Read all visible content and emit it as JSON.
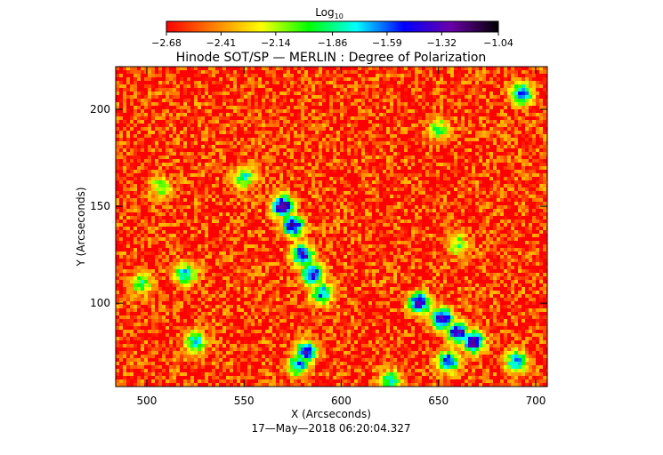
{
  "chart_data": {
    "type": "heatmap",
    "title": "Hinode SOT/SP — MERLIN : Degree of Polarization",
    "subtitle": "17—May—2018 06:20:04.327",
    "xlabel": "X (Arcseconds)",
    "ylabel": "Y (Arcseconds)",
    "xlim": [
      484,
      706
    ],
    "ylim": [
      57,
      222
    ],
    "x_ticks": [
      "500",
      "550",
      "600",
      "650",
      "700"
    ],
    "x_tick_values": [
      500,
      550,
      600,
      650,
      700
    ],
    "y_ticks": [
      "100",
      "150",
      "200"
    ],
    "y_tick_values": [
      100,
      150,
      200
    ],
    "grid": false,
    "colorbar": {
      "label_base": "Log",
      "label_sub": "10",
      "ticks": [
        "−2.68",
        "−2.41",
        "−2.14",
        "−1.86",
        "−1.59",
        "−1.32",
        "−1.04"
      ],
      "tick_values": [
        -2.68,
        -2.41,
        -2.14,
        -1.86,
        -1.59,
        -1.32,
        -1.04
      ],
      "range": [
        -2.68,
        -1.04
      ],
      "placement": "top",
      "colors": [
        "#ff0000",
        "#ff7f00",
        "#ffff00",
        "#00ff00",
        "#00ffff",
        "#0000ff",
        "#6a00a8",
        "#000000"
      ]
    },
    "background_level": -2.6,
    "features": [
      {
        "x": 575,
        "y": 140,
        "level": -1.25
      },
      {
        "x": 570,
        "y": 150,
        "level": -1.15
      },
      {
        "x": 580,
        "y": 125,
        "level": -1.3
      },
      {
        "x": 585,
        "y": 115,
        "level": -1.4
      },
      {
        "x": 590,
        "y": 105,
        "level": -1.6
      },
      {
        "x": 582,
        "y": 75,
        "level": -1.4
      },
      {
        "x": 578,
        "y": 68,
        "level": -1.6
      },
      {
        "x": 640,
        "y": 100,
        "level": -1.25
      },
      {
        "x": 652,
        "y": 92,
        "level": -1.2
      },
      {
        "x": 660,
        "y": 85,
        "level": -1.3
      },
      {
        "x": 668,
        "y": 80,
        "level": -1.2
      },
      {
        "x": 655,
        "y": 70,
        "level": -1.4
      },
      {
        "x": 690,
        "y": 70,
        "level": -1.6
      },
      {
        "x": 520,
        "y": 115,
        "level": -1.7
      },
      {
        "x": 525,
        "y": 80,
        "level": -1.7
      },
      {
        "x": 497,
        "y": 110,
        "level": -1.9
      },
      {
        "x": 550,
        "y": 165,
        "level": -1.8
      },
      {
        "x": 693,
        "y": 208,
        "level": -1.5
      },
      {
        "x": 507,
        "y": 160,
        "level": -2.0
      },
      {
        "x": 650,
        "y": 190,
        "level": -2.0
      },
      {
        "x": 660,
        "y": 130,
        "level": -2.0
      },
      {
        "x": 625,
        "y": 60,
        "level": -1.8
      }
    ]
  }
}
